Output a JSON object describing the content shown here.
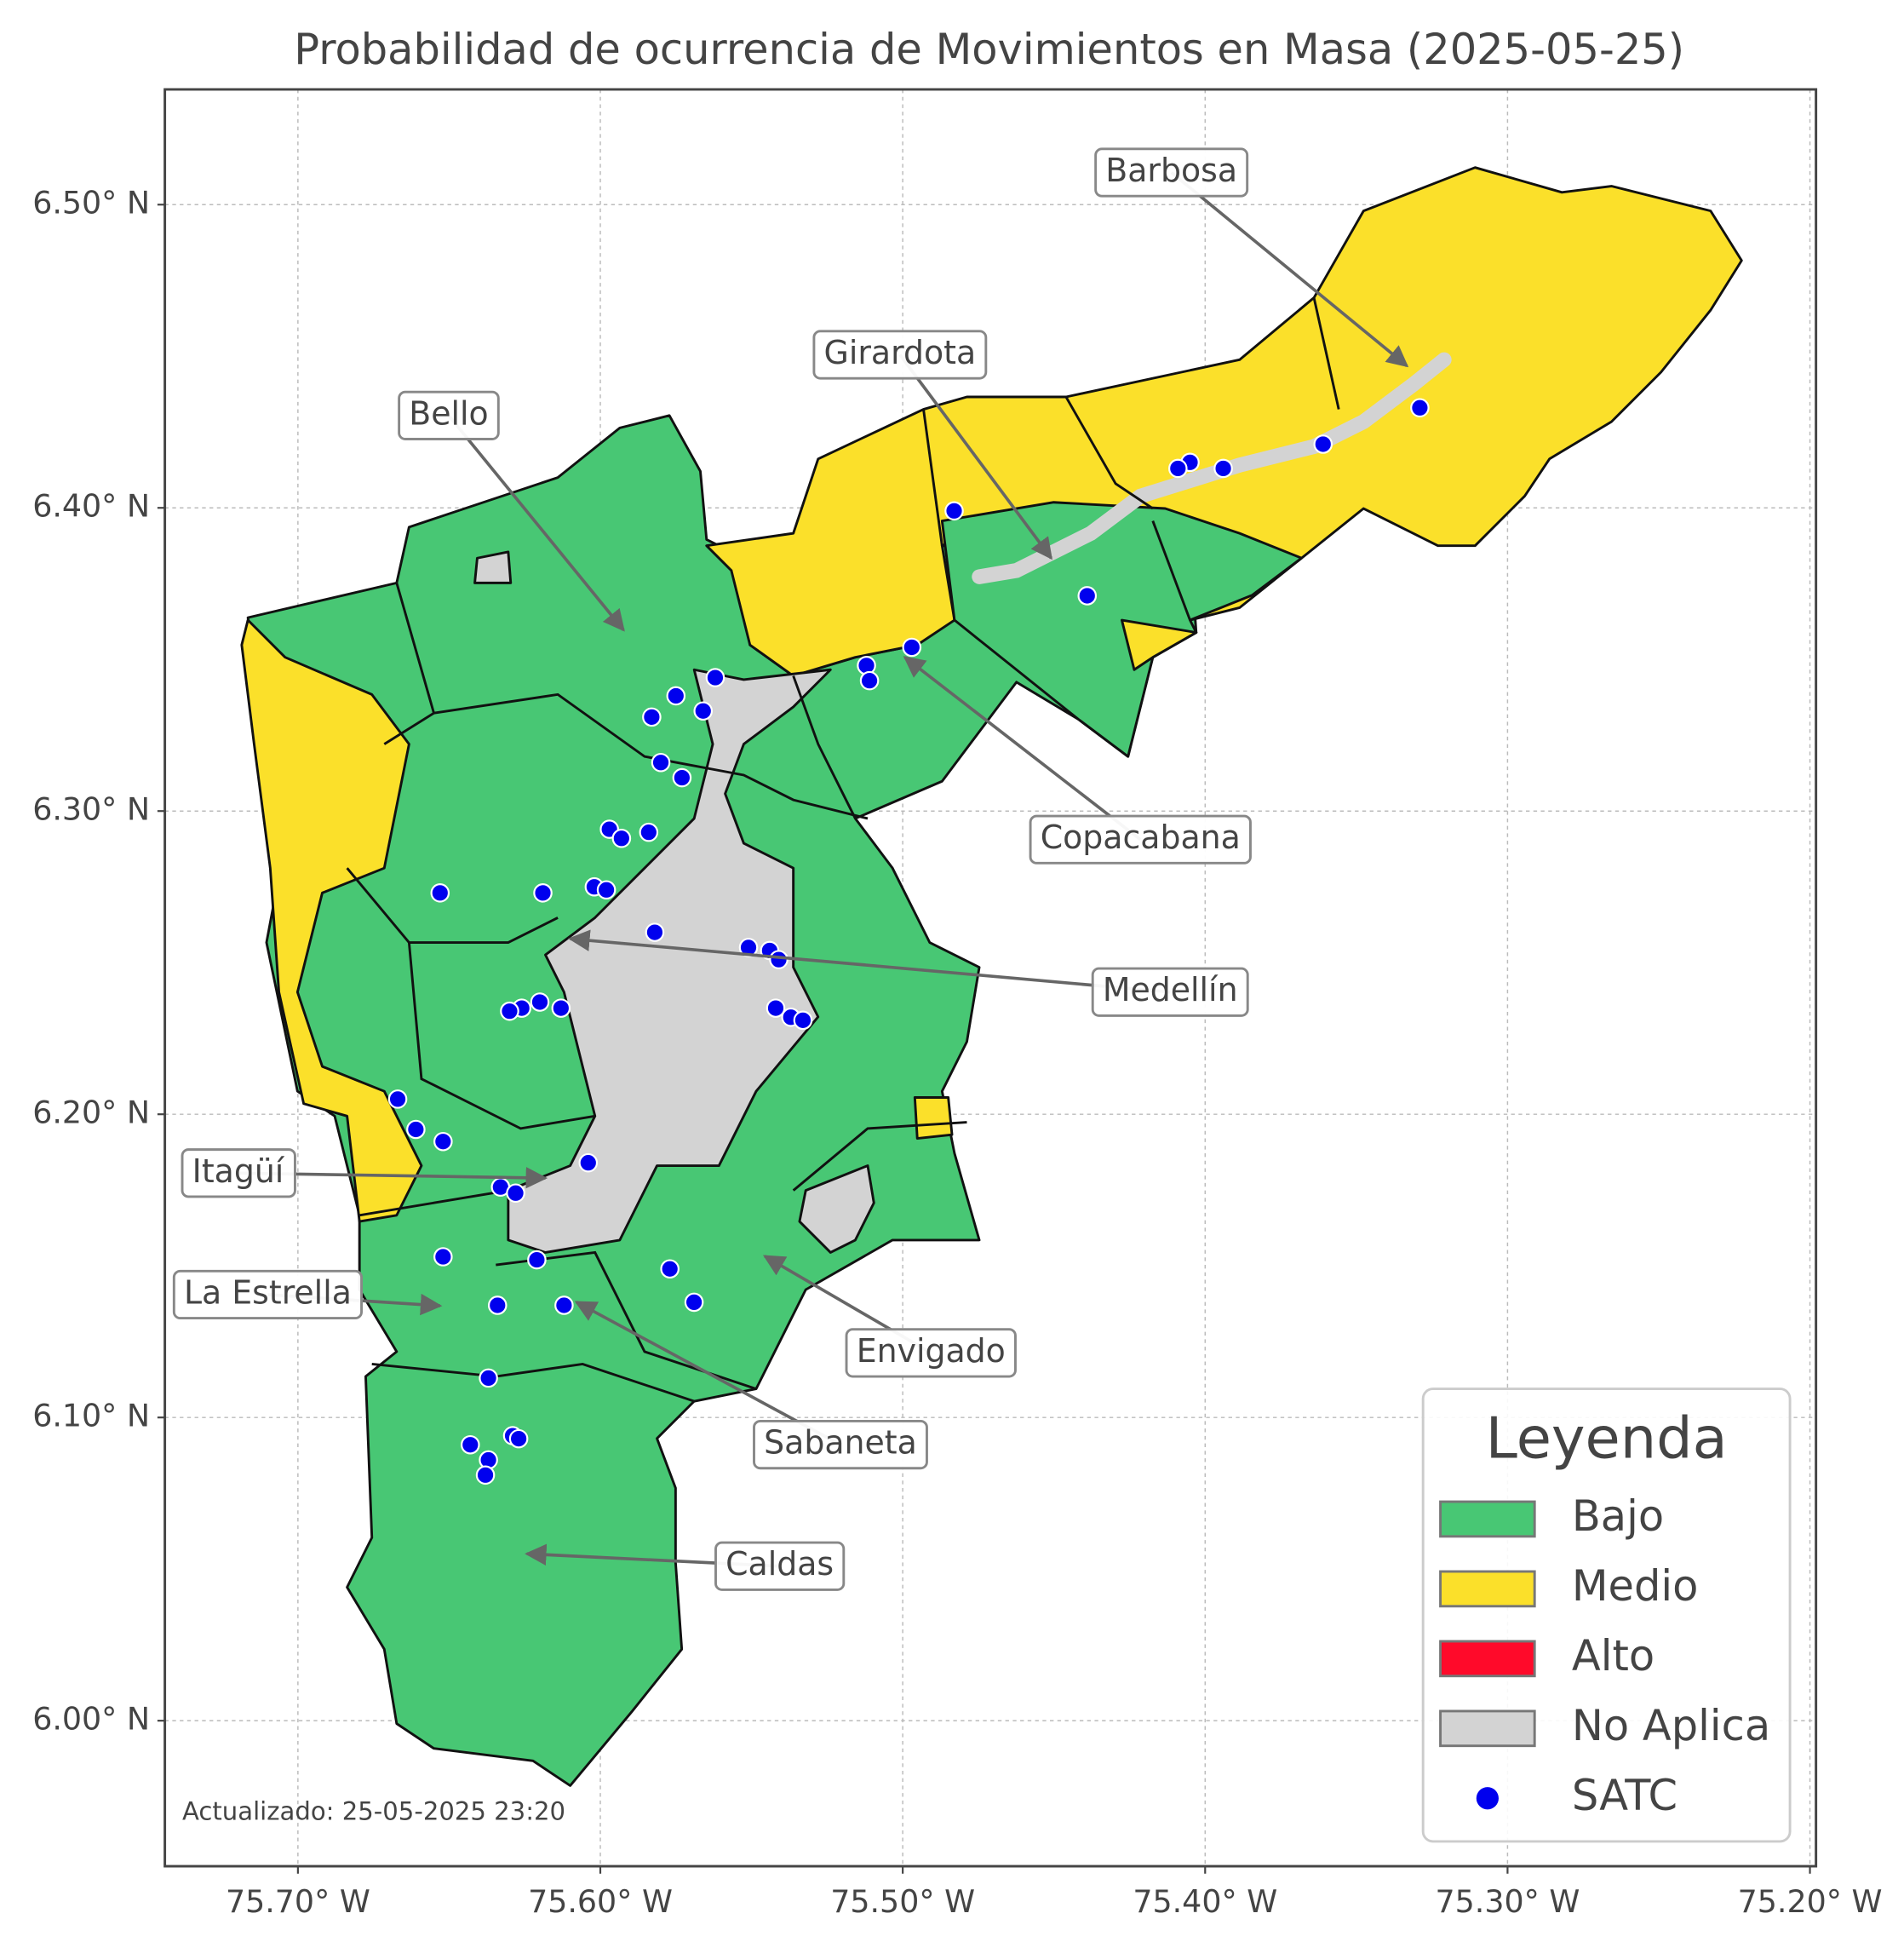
{
  "chart_data": {
    "type": "map",
    "title": "Probabilidad de ocurrencia de Movimientos en Masa (2025-05-25)",
    "xlim": [
      -75.744,
      -75.198
    ],
    "ylim": [
      5.952,
      6.538
    ],
    "xticks": [
      {
        "value": -75.7,
        "label": "75.70° W"
      },
      {
        "value": -75.6,
        "label": "75.60° W"
      },
      {
        "value": -75.5,
        "label": "75.50° W"
      },
      {
        "value": -75.4,
        "label": "75.40° W"
      },
      {
        "value": -75.3,
        "label": "75.30° W"
      },
      {
        "value": -75.2,
        "label": "75.20° W"
      }
    ],
    "yticks": [
      {
        "value": 6.0,
        "label": "6.00° N"
      },
      {
        "value": 6.1,
        "label": "6.10° N"
      },
      {
        "value": 6.2,
        "label": "6.20° N"
      },
      {
        "value": 6.3,
        "label": "6.30° N"
      },
      {
        "value": 6.4,
        "label": "6.40° N"
      },
      {
        "value": 6.5,
        "label": "6.50° N"
      }
    ],
    "grid": true,
    "legend_title": "Leyenda",
    "legend_position": "lower right",
    "zones": [
      {
        "name": "Bajo",
        "color": "#48c774"
      },
      {
        "name": "Medio",
        "color": "#fbe02a"
      },
      {
        "name": "Alto",
        "color": "#ff0a2a"
      },
      {
        "name": "No Aplica",
        "color": "#d3d3d3"
      }
    ],
    "series": [
      {
        "name": "SATC",
        "color": "#0000ee",
        "x": [
          -75.329,
          -75.361,
          -75.394,
          -75.405,
          -75.409,
          -75.483,
          -75.439,
          -75.497,
          -75.512,
          -75.511,
          -75.562,
          -75.575,
          -75.566,
          -75.583,
          -75.58,
          -75.573,
          -75.597,
          -75.593,
          -75.584,
          -75.619,
          -75.653,
          -75.602,
          -75.598,
          -75.582,
          -75.551,
          -75.544,
          -75.541,
          -75.542,
          -75.537,
          -75.533,
          -75.62,
          -75.626,
          -75.63,
          -75.613,
          -75.667,
          -75.661,
          -75.652,
          -75.604,
          -75.633,
          -75.628,
          -75.652,
          -75.621,
          -75.577,
          -75.569,
          -75.634,
          -75.612,
          -75.637,
          -75.643,
          -75.629,
          -75.627,
          -75.637,
          -75.638
        ],
        "y": [
          6.433,
          6.421,
          6.413,
          6.415,
          6.413,
          6.399,
          6.371,
          6.354,
          6.348,
          6.343,
          6.344,
          6.338,
          6.333,
          6.331,
          6.316,
          6.311,
          6.294,
          6.291,
          6.293,
          6.273,
          6.273,
          6.275,
          6.274,
          6.26,
          6.255,
          6.254,
          6.251,
          6.235,
          6.232,
          6.231,
          6.237,
          6.235,
          6.234,
          6.235,
          6.205,
          6.195,
          6.191,
          6.184,
          6.176,
          6.174,
          6.153,
          6.152,
          6.149,
          6.138,
          6.137,
          6.137,
          6.113,
          6.091,
          6.094,
          6.093,
          6.086,
          6.081
        ]
      }
    ],
    "annotations": [
      "Barbosa",
      "Girardota",
      "Bello",
      "Copacabana",
      "Medellín",
      "Itagüí",
      "La Estrella",
      "Envigado",
      "Sabaneta",
      "Caldas"
    ],
    "updated": "Actualizado: 25-05-2025 23:20"
  }
}
